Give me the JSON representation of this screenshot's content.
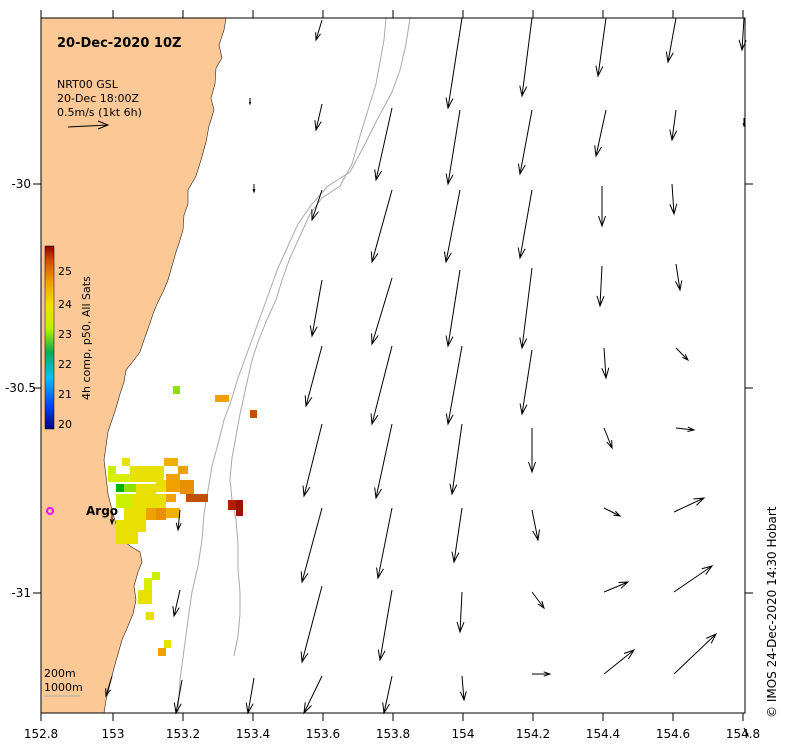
{
  "map": {
    "title": "20-Dec-2020 10Z",
    "legend": {
      "product": "NRT00 GSL",
      "time": "20-Dec 18:00Z",
      "scale": "0.5m/s (1kt 6h)"
    },
    "colorbar": {
      "title": "4h comp, p50, All Sats",
      "ticks": [
        "25",
        "24",
        "23",
        "22",
        "21",
        "20"
      ]
    },
    "x_ticks": [
      "152.8",
      "153",
      "153.2",
      "153.4",
      "153.6",
      "153.8",
      "154",
      "154.2",
      "154.4",
      "154.6",
      "154.8"
    ],
    "y_ticks": [
      "-30",
      "-30.5",
      "-31"
    ],
    "contours": {
      "shelf": "200m",
      "slope": "1000m"
    },
    "argo_label": "Argo",
    "credit": "© IMOS 24-Dec-2020 14:30 Hobart",
    "colors": {
      "land": "#fcc896",
      "argo": "#ff00ff",
      "contour": "#aaaaaa"
    }
  }
}
